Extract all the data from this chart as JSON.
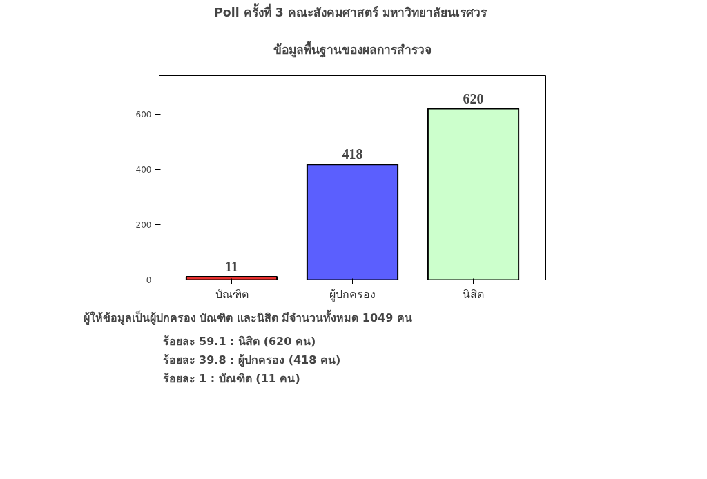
{
  "chart_data": {
    "type": "bar",
    "title": "Poll  ครั้งที่ 3 คณะสังคมศาสตร์ มหาวิทยาลัยนเรศวร",
    "subtitle": "ข้อมูลพื้นฐานของผลการสำรวจ",
    "categories": [
      "บัณฑิต",
      "ผู้ปกครอง",
      "นิสิต"
    ],
    "values": [
      11,
      418,
      620
    ],
    "colors": [
      "#e8312f",
      "#5b5ffe",
      "#ccffcc"
    ],
    "ylim": [
      0,
      740
    ],
    "yticks": [
      0,
      200,
      400,
      600
    ],
    "grid": false,
    "data_labels": true,
    "annotations": [
      "ผู้ให้ข้อมูลเป็นผู้ปกครอง บัณฑิต และนิสิต มีจำนวนทั้งหมด 1049 คน",
      "ร้อยละ 59.1 : นิสิต (620 คน)",
      "ร้อยละ 39.8 : ผู้ปกครอง (418 คน)",
      "ร้อยละ 1      : บัณฑิต (11 คน)"
    ]
  }
}
